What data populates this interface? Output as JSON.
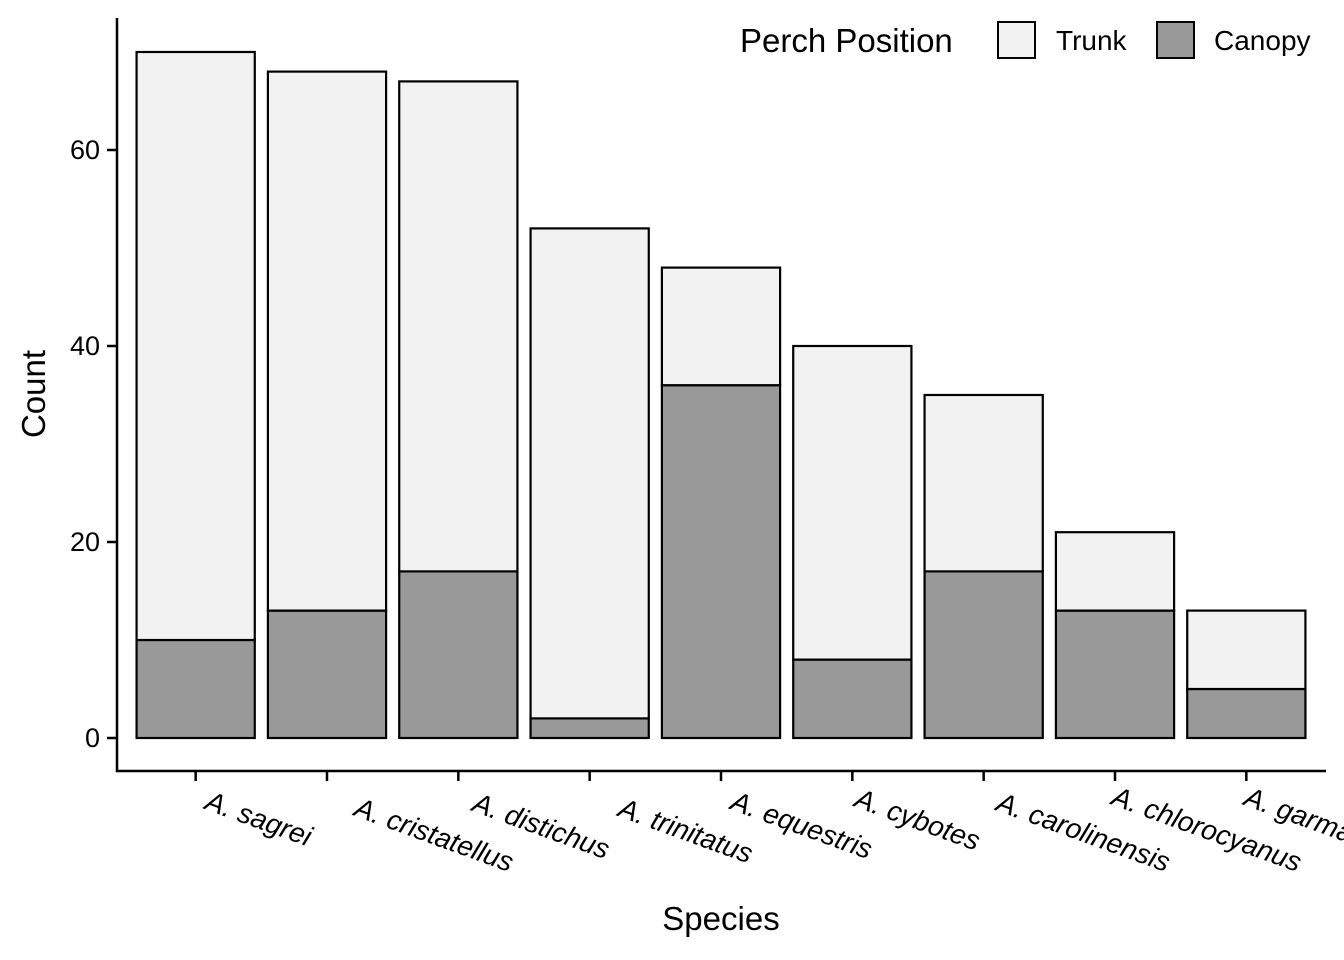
{
  "chart_data": {
    "type": "bar",
    "stacked": true,
    "categories": [
      "A. sagrei",
      "A. cristatellus",
      "A. distichus",
      "A. trinitatus",
      "A. equestris",
      "A. cybotes",
      "A. carolinensis",
      "A. chlorocyanus",
      "A. garmani"
    ],
    "series": [
      {
        "name": "Canopy",
        "values": [
          10,
          13,
          17,
          2,
          36,
          8,
          17,
          13,
          5
        ],
        "color": "#999999"
      },
      {
        "name": "Trunk",
        "values": [
          60,
          55,
          50,
          50,
          12,
          32,
          18,
          8,
          8
        ],
        "color": "#f2f2f2"
      }
    ],
    "xlabel": "Species",
    "ylabel": "Count",
    "ylim": [
      0,
      70
    ],
    "yticks": [
      0,
      20,
      40,
      60
    ],
    "legend": {
      "title": "Perch Position",
      "placement": "top-right",
      "entries": [
        "Trunk",
        "Canopy"
      ]
    },
    "grid": false
  }
}
